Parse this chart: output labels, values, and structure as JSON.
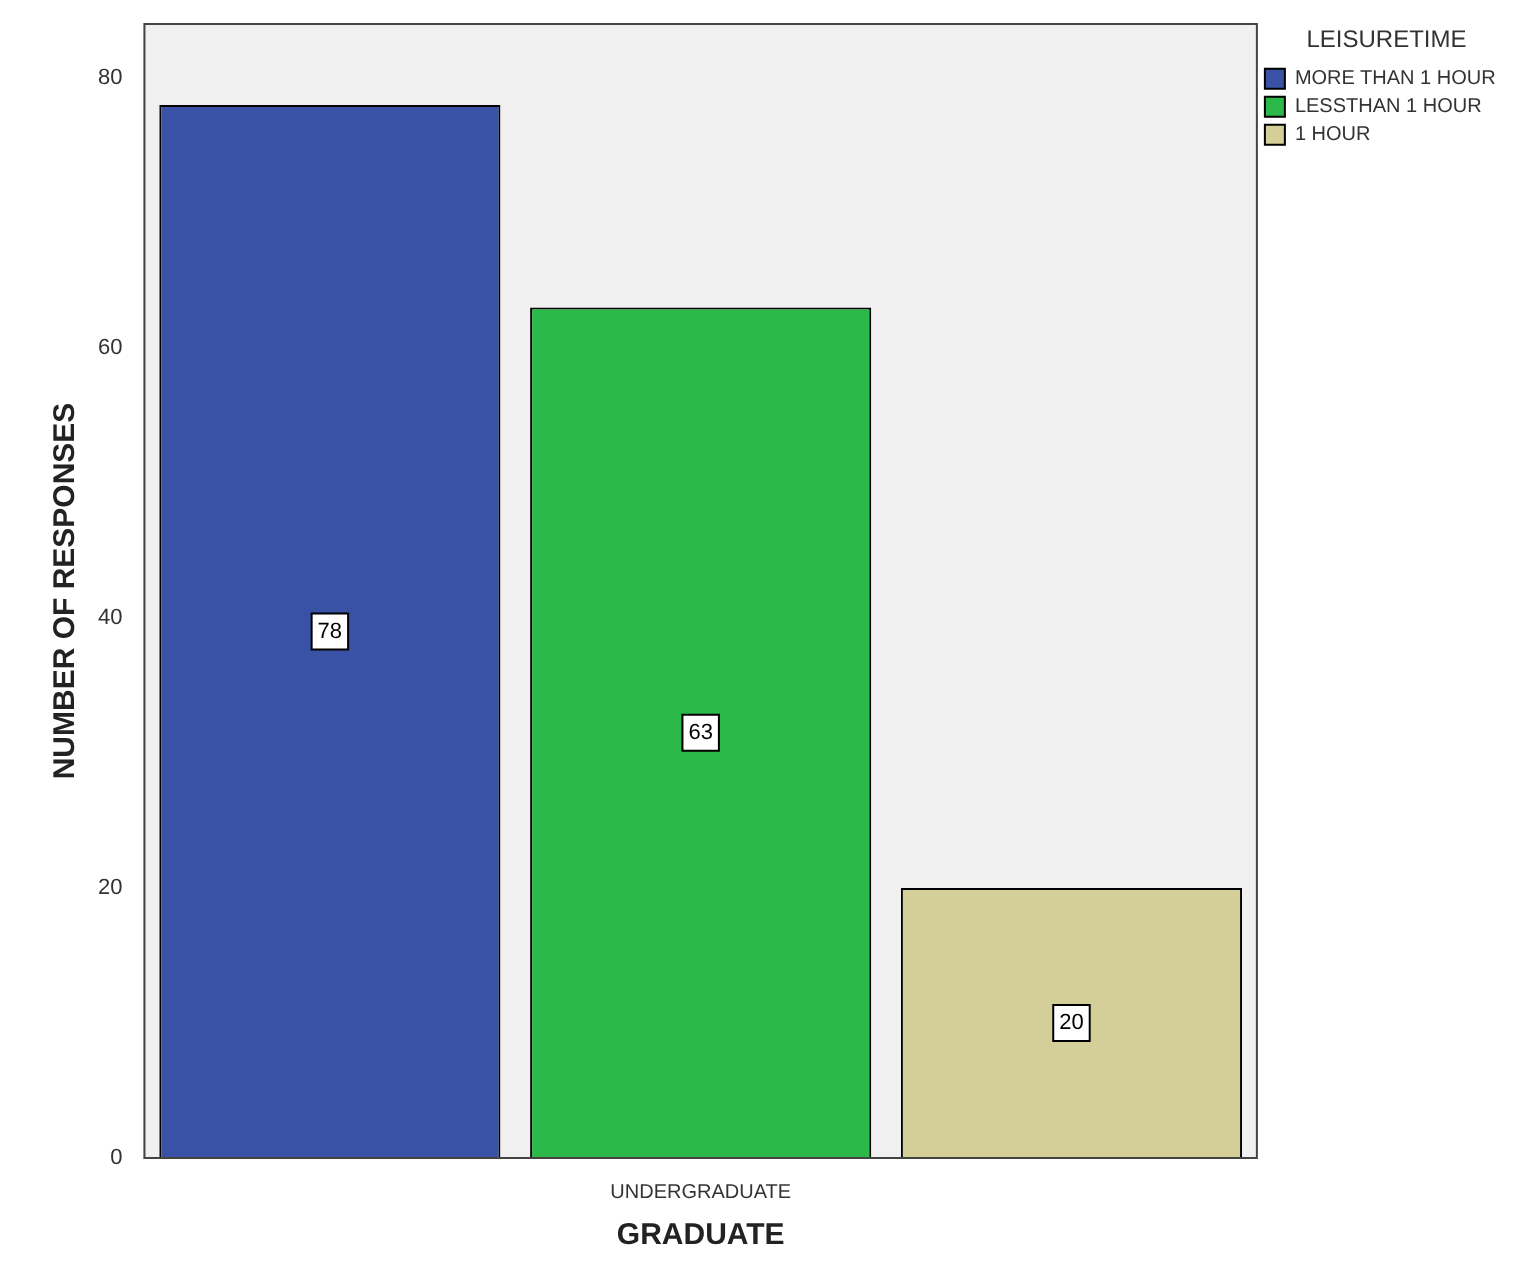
{
  "chart_data": {
    "type": "bar",
    "xlabel": "GRADUATE",
    "ylabel": "NUMBER OF RESPONSES",
    "legend_title": "LEISURETIME",
    "categories": [
      "UNDERGRADUATE"
    ],
    "series": [
      {
        "name": "MORE THAN 1 HOUR",
        "color": "#3a52a5",
        "values": [
          78
        ]
      },
      {
        "name": "LESSTHAN 1 HOUR",
        "color": "#2db84a",
        "values": [
          63
        ]
      },
      {
        "name": "1 HOUR",
        "color": "#d4cf98",
        "values": [
          20
        ]
      }
    ],
    "ylim": [
      0,
      84
    ],
    "yticks": [
      0,
      20,
      40,
      60,
      80
    ],
    "grid": false,
    "legend": "top right",
    "data_labels": true
  }
}
